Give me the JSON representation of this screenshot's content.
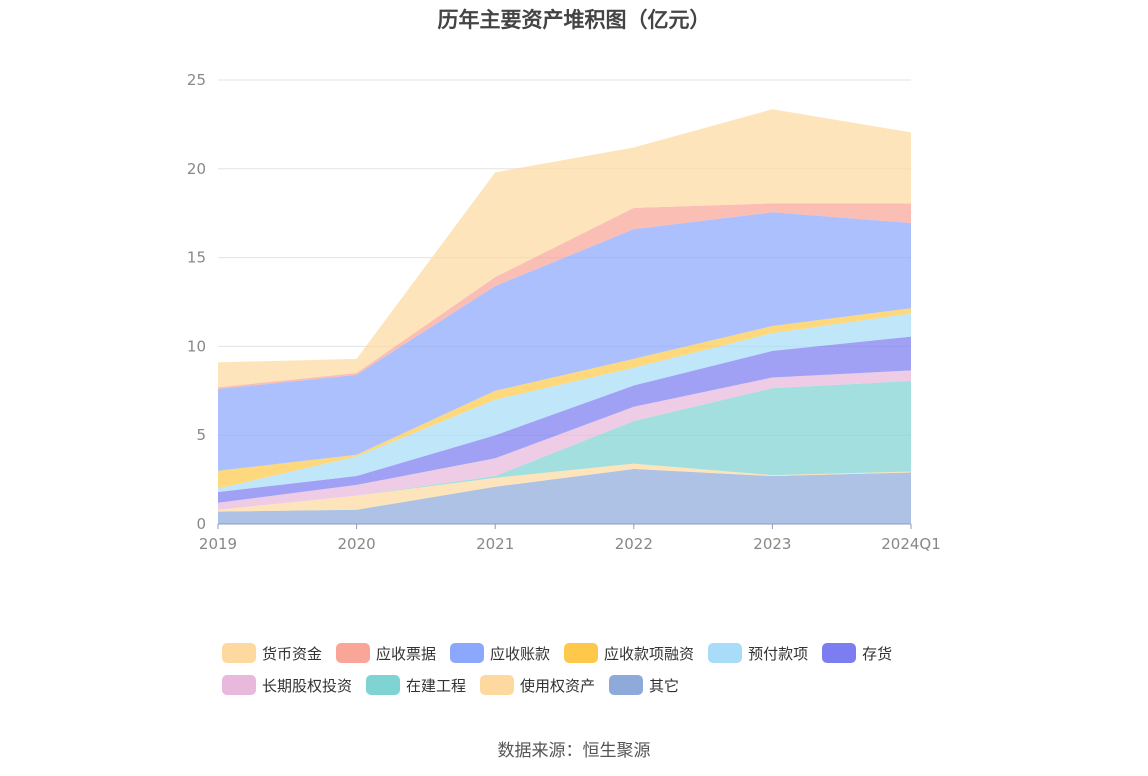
{
  "chart_data": {
    "type": "area",
    "stacked": true,
    "title": "历年主要资产堆积图（亿元）",
    "source": "数据来源：恒生聚源",
    "categories": [
      "2019",
      "2020",
      "2021",
      "2022",
      "2023",
      "2024Q1"
    ],
    "ylim": [
      0,
      25
    ],
    "yticks": [
      "0",
      "5",
      "10",
      "15",
      "20",
      "25"
    ],
    "grid": true,
    "legend_position": "bottom",
    "series": [
      {
        "name": "其它",
        "color": "#8eaadb",
        "values": [
          0.7,
          0.8,
          2.1,
          3.1,
          2.7,
          2.9
        ]
      },
      {
        "name": "使用权资产",
        "color": "#fdd9a0",
        "values": [
          0.1,
          0.8,
          0.5,
          0.3,
          0.05,
          0.05
        ]
      },
      {
        "name": "在建工程",
        "color": "#7fd3d3",
        "values": [
          0.0,
          0.0,
          0.1,
          2.4,
          4.9,
          5.1
        ]
      },
      {
        "name": "长期股权投资",
        "color": "#e8b8dd",
        "values": [
          0.4,
          0.6,
          1.0,
          0.8,
          0.6,
          0.6
        ]
      },
      {
        "name": "存货",
        "color": "#7b7df0",
        "values": [
          0.6,
          0.5,
          1.3,
          1.2,
          1.5,
          1.9
        ]
      },
      {
        "name": "预付款项",
        "color": "#a8dcf8",
        "values": [
          0.2,
          1.1,
          2.0,
          1.0,
          1.0,
          1.3
        ]
      },
      {
        "name": "应收款项融资",
        "color": "#fec94a",
        "values": [
          1.0,
          0.1,
          0.5,
          0.5,
          0.4,
          0.3
        ]
      },
      {
        "name": "应收账款",
        "color": "#8ca8fc",
        "values": [
          4.6,
          4.5,
          5.9,
          7.3,
          6.4,
          4.8
        ]
      },
      {
        "name": "应收票据",
        "color": "#f9a598",
        "values": [
          0.1,
          0.1,
          0.5,
          1.2,
          0.5,
          1.1
        ]
      },
      {
        "name": "货币资金",
        "color": "#fdd9a0",
        "values": [
          1.4,
          0.8,
          5.9,
          3.4,
          5.3,
          4.0
        ]
      }
    ],
    "legend_rows": [
      [
        "货币资金",
        "应收票据",
        "应收账款",
        "应收款项融资",
        "预付款项",
        "存货"
      ],
      [
        "长期股权投资",
        "在建工程",
        "使用权资产",
        "其它"
      ]
    ]
  }
}
